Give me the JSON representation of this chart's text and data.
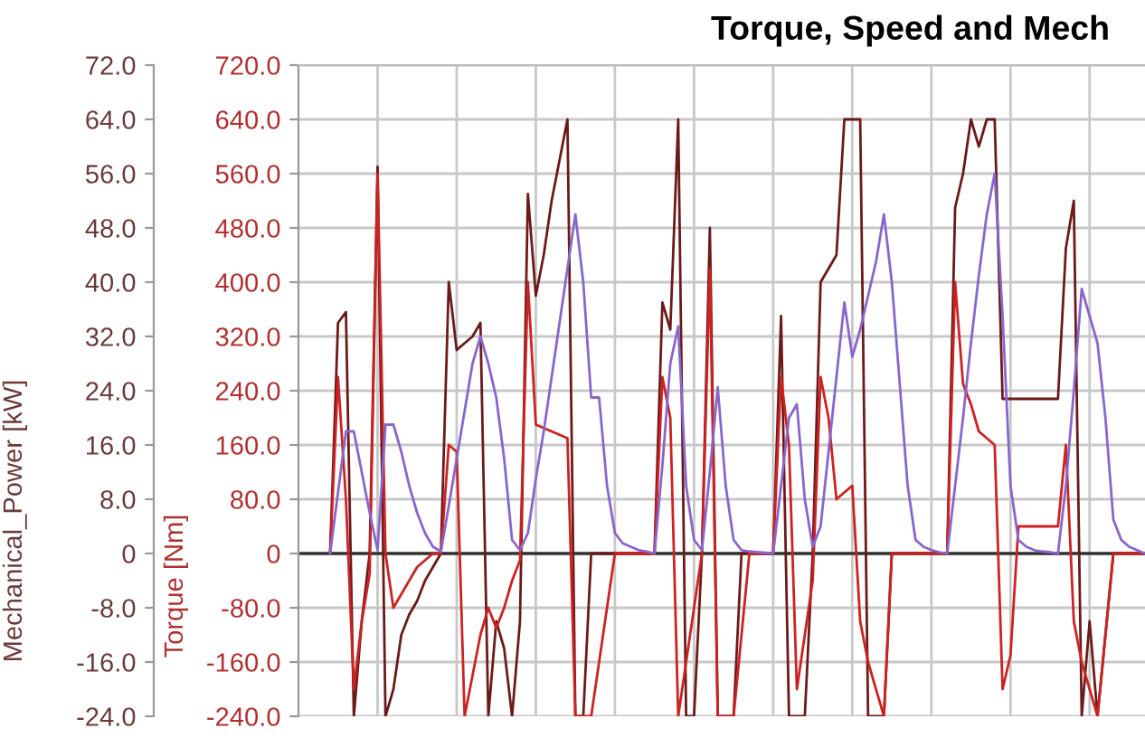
{
  "chart_data": {
    "type": "line",
    "title": "Torque, Speed and Mech",
    "ylabel": "Torque [Nm]",
    "y2label": "Mechanical_Power [kW]",
    "categories": [
      null,
      null,
      null,
      null,
      null,
      null,
      null,
      null,
      null,
      null,
      null,
      null,
      null,
      null,
      null,
      null,
      null,
      null,
      null,
      null,
      null,
      null,
      null,
      null,
      null,
      null,
      null,
      null,
      null,
      null,
      null,
      null,
      null,
      null,
      null,
      null,
      null,
      null,
      null,
      null,
      null,
      null,
      null,
      null,
      null,
      null,
      null,
      null,
      null,
      null,
      null,
      null,
      null,
      null,
      null,
      null,
      null,
      null,
      null,
      null,
      null,
      null,
      null,
      null,
      null,
      null,
      null,
      null,
      null,
      null,
      null,
      null,
      null,
      null,
      null,
      null,
      null,
      null,
      null,
      null,
      null,
      null,
      null,
      null,
      null,
      null,
      null,
      null,
      null,
      null,
      null,
      null,
      null,
      null,
      null,
      null,
      null,
      null,
      null,
      null,
      null,
      null,
      null,
      null,
      null,
      null,
      null,
      null
    ],
    "ylim": [
      -240,
      720
    ],
    "yticks": [
      {
        "value": -240,
        "label": "-240.0"
      },
      {
        "value": -160,
        "label": "-160.0"
      },
      {
        "value": -80,
        "label": "-80.0"
      },
      {
        "value": 0,
        "label": "0"
      },
      {
        "value": 80,
        "label": "80.0"
      },
      {
        "value": 160,
        "label": "160.0"
      },
      {
        "value": 240,
        "label": "240.0"
      },
      {
        "value": 320,
        "label": "320.0"
      },
      {
        "value": 400,
        "label": "400.0"
      },
      {
        "value": 480,
        "label": "480.0"
      },
      {
        "value": 560,
        "label": "560.0"
      },
      {
        "value": 640,
        "label": "640.0"
      },
      {
        "value": 720,
        "label": "720.0"
      }
    ],
    "y2lim": [
      -24,
      72
    ],
    "y2ticks": [
      {
        "value": -24,
        "label": "-24.0"
      },
      {
        "value": -16,
        "label": "-16.0"
      },
      {
        "value": -8,
        "label": "-8.0"
      },
      {
        "value": 0,
        "label": "0"
      },
      {
        "value": 8,
        "label": "8.0"
      },
      {
        "value": 16,
        "label": "16.0"
      },
      {
        "value": 24,
        "label": "24.0"
      },
      {
        "value": 32,
        "label": "32.0"
      },
      {
        "value": 40,
        "label": "40.0"
      },
      {
        "value": 48,
        "label": "48.0"
      },
      {
        "value": 56,
        "label": "56.0"
      },
      {
        "value": 64,
        "label": "64.0"
      },
      {
        "value": 72,
        "label": "72.0"
      }
    ],
    "grid": true,
    "tick_labels": "y",
    "ref_lines": [
      {
        "axis": "y",
        "value": 0,
        "color": "#333333"
      }
    ],
    "series": [
      {
        "color": "#6b1a1a",
        "values": [
          null,
          null,
          null,
          null,
          0,
          340,
          356,
          -240,
          -100,
          0,
          570,
          -240,
          -200,
          -120,
          -90,
          -70,
          -40,
          -20,
          0,
          400,
          300,
          310,
          320,
          340,
          -240,
          -100,
          -140,
          -240,
          -100,
          530,
          380,
          440,
          520,
          580,
          640,
          -240,
          -240,
          0,
          0,
          0,
          0,
          0,
          0,
          0,
          0,
          0,
          370,
          330,
          640,
          -240,
          -240,
          0,
          480,
          -240,
          -240,
          -240,
          0,
          0,
          0,
          0,
          0,
          350,
          -240,
          -240,
          -240,
          0,
          400,
          420,
          440,
          640,
          640,
          640,
          -240,
          -240,
          -240,
          0,
          0,
          0,
          0,
          0,
          0,
          0,
          0,
          510,
          560,
          640,
          600,
          640,
          640,
          228,
          228,
          228,
          228,
          228,
          228,
          228,
          228,
          450,
          520,
          -240,
          -100,
          -240,
          -120,
          0,
          0,
          0,
          0,
          0
        ]
      },
      {
        "color": "#cc2222",
        "values": [
          null,
          null,
          null,
          null,
          0,
          260,
          80,
          -200,
          -100,
          -30,
          560,
          0,
          -80,
          -60,
          -40,
          -20,
          -10,
          0,
          0,
          160,
          150,
          -240,
          -180,
          -120,
          -80,
          -110,
          -80,
          -40,
          -10,
          400,
          190,
          185,
          180,
          175,
          170,
          -240,
          -240,
          -240,
          -160,
          -80,
          0,
          0,
          0,
          0,
          0,
          0,
          260,
          200,
          -240,
          -160,
          -80,
          0,
          420,
          -240,
          -240,
          -240,
          -120,
          0,
          0,
          0,
          0,
          260,
          160,
          -200,
          -120,
          -40,
          260,
          200,
          80,
          90,
          100,
          -100,
          -160,
          -200,
          -240,
          0,
          0,
          0,
          0,
          0,
          0,
          0,
          0,
          400,
          250,
          220,
          180,
          170,
          160,
          -200,
          -150,
          40,
          40,
          40,
          40,
          40,
          40,
          160,
          -100,
          -160,
          -200,
          -240,
          -120,
          0,
          0,
          0,
          0,
          0
        ]
      },
      {
        "color": "#8866cc",
        "axis": "y2",
        "values": [
          null,
          null,
          null,
          null,
          0,
          9,
          18,
          18,
          12,
          6,
          0.5,
          19,
          19,
          15,
          10,
          6,
          3,
          1,
          0.3,
          7,
          14,
          21,
          28,
          32,
          28,
          23,
          14,
          2,
          0.5,
          3,
          11,
          18,
          26,
          34,
          42,
          50,
          40,
          23,
          23,
          10,
          3,
          1.5,
          1,
          0.5,
          0.3,
          0,
          13,
          28,
          33.5,
          10,
          2,
          0.5,
          12,
          24.5,
          10,
          2,
          0.5,
          0.3,
          0.2,
          0.1,
          0,
          10,
          20,
          22,
          8,
          1,
          4,
          15,
          26,
          37,
          29,
          33,
          38,
          43,
          50,
          40,
          25,
          10,
          2,
          1,
          0.5,
          0.2,
          0,
          10,
          20,
          31,
          41,
          50,
          56,
          35,
          10,
          2,
          1,
          0.5,
          0.3,
          0.2,
          0,
          10,
          24,
          39,
          35,
          31,
          20,
          5,
          2,
          1,
          0.5,
          0
        ]
      }
    ]
  }
}
